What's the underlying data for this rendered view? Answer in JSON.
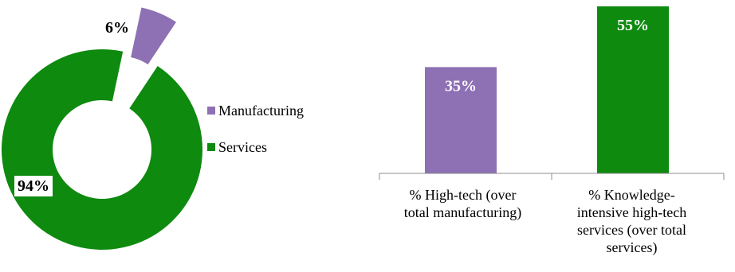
{
  "chart_data": [
    {
      "type": "pie",
      "donut": true,
      "categories": [
        "Manufacturing",
        "Services"
      ],
      "values": [
        6,
        94
      ],
      "data_labels": [
        "6%",
        "94%"
      ],
      "colors": [
        "#8e70b4",
        "#0e8a0e"
      ],
      "legend": {
        "position": "right",
        "items": [
          {
            "label": "Manufacturing",
            "color": "#8e70b4"
          },
          {
            "label": "Services",
            "color": "#0e8a0e"
          }
        ]
      }
    },
    {
      "type": "bar",
      "categories": [
        "% High-tech (over total manufacturing)",
        "% Knowledge-intensive high-tech services (over total services)"
      ],
      "category_lines": [
        [
          "% High-tech (over",
          "total manufacturing)"
        ],
        [
          "% Knowledge-",
          "intensive high-tech",
          "services (over total",
          "services)"
        ]
      ],
      "values": [
        35,
        55
      ],
      "data_labels": [
        "35%",
        "55%"
      ],
      "colors": [
        "#8e70b4",
        "#0e8a0e"
      ],
      "ylim": [
        0,
        55
      ],
      "grid": false
    }
  ]
}
